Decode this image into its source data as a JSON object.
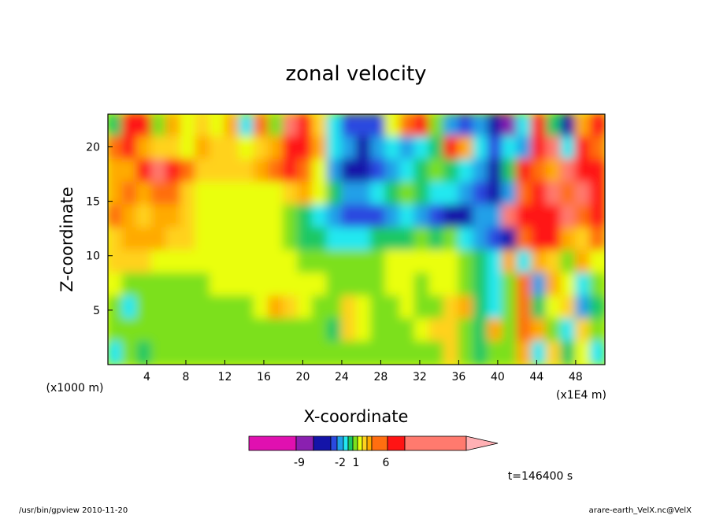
{
  "chart_data": {
    "type": "heatmap",
    "title": "zonal velocity",
    "xlabel": "X-coordinate",
    "ylabel": "Z-coordinate",
    "x_unit_left": "(x1000 m)",
    "x_unit_right": "(x1E4 m)",
    "x_ticks": [
      4,
      8,
      12,
      16,
      20,
      24,
      28,
      32,
      36,
      40,
      44,
      48
    ],
    "y_ticks": [
      5,
      10,
      15,
      20
    ],
    "xlim": [
      0,
      51
    ],
    "ylim": [
      0,
      23
    ],
    "colorbar": {
      "levels": [
        -15,
        -9,
        -7,
        -5,
        -4,
        -3,
        -2,
        -1,
        0,
        1,
        2,
        3,
        4,
        6,
        8,
        15
      ],
      "tick_labels": [
        "-9",
        "-2",
        "1",
        "6"
      ],
      "colors": [
        "#e010b0",
        "#8a20b0",
        "#1414a8",
        "#2a4ae0",
        "#21a0e8",
        "#22e8f0",
        "#1cc864",
        "#7ce01c",
        "#eaff10",
        "#ffd21e",
        "#ffaa00",
        "#ff6e10",
        "#ff1414",
        "#ff7a6e",
        "#ffb0b4"
      ]
    },
    "values": [
      [
        -2,
        5,
        4,
        -1,
        2,
        0,
        1,
        0,
        2,
        -3,
        3,
        -1,
        6,
        5,
        1,
        -3,
        -5,
        -5,
        -5,
        0,
        3,
        4,
        -1,
        -4,
        -5,
        -4,
        -6,
        -8,
        -3,
        5,
        -2,
        -7,
        2,
        4
      ],
      [
        3,
        4,
        2,
        1,
        1,
        0,
        2,
        1,
        1,
        0,
        1,
        2,
        5,
        4,
        2,
        -3,
        -4,
        -6,
        -4,
        -3,
        -4,
        -3,
        -2,
        5,
        2,
        -3,
        -5,
        -3,
        -4,
        4,
        7,
        -3,
        5,
        3
      ],
      [
        2,
        2,
        5,
        6,
        4,
        3,
        1,
        1,
        1,
        1,
        2,
        3,
        4,
        3,
        0,
        -4,
        -6,
        -6,
        -5,
        -4,
        -3,
        -2,
        -1,
        -2,
        -3,
        -4,
        -6,
        -2,
        5,
        3,
        2,
        6,
        4,
        5
      ],
      [
        2,
        3,
        2,
        3,
        3,
        1,
        0,
        0,
        0,
        0,
        0,
        0,
        1,
        2,
        0,
        -2,
        -4,
        -4,
        -3,
        -2,
        -1,
        -2,
        -3,
        -3,
        -4,
        -5,
        -6,
        -4,
        3,
        4,
        6,
        3,
        6,
        5
      ],
      [
        3,
        2,
        1,
        2,
        2,
        1,
        0,
        0,
        0,
        0,
        0,
        0,
        -1,
        -2,
        -3,
        -4,
        -5,
        -5,
        -5,
        -4,
        -3,
        -4,
        -5,
        -7,
        -6,
        -4,
        -4,
        7,
        5,
        4,
        5,
        6,
        3,
        4
      ],
      [
        1,
        2,
        2,
        2,
        1,
        1,
        0,
        0,
        0,
        0,
        0,
        0,
        -1,
        -2,
        -2,
        -3,
        -3,
        -3,
        -2,
        -2,
        -2,
        -1,
        -2,
        -1,
        -3,
        -4,
        -5,
        -7,
        3,
        4,
        4,
        2,
        1,
        3
      ],
      [
        1,
        1,
        1,
        0,
        0,
        0,
        0,
        0,
        0,
        0,
        0,
        0,
        0,
        -1,
        -1,
        -1,
        -1,
        -1,
        -1,
        0,
        0,
        0,
        0,
        0,
        -1,
        -2,
        -3,
        2,
        -3,
        2,
        1,
        -1,
        2,
        0
      ],
      [
        0,
        -1,
        -1,
        -1,
        -1,
        -1,
        -1,
        0,
        0,
        0,
        0,
        0,
        0,
        0,
        0,
        -1,
        -1,
        -1,
        -1,
        0,
        0,
        -1,
        0,
        0,
        -1,
        -2,
        -3,
        -1,
        3,
        -4,
        2,
        0,
        -3,
        -1
      ],
      [
        -1,
        -3,
        -1,
        -1,
        -1,
        -1,
        -1,
        -1,
        -1,
        -1,
        0,
        2,
        1,
        0,
        -1,
        -1,
        1,
        0,
        -1,
        -1,
        0,
        -1,
        -1,
        1,
        2,
        -2,
        -3,
        -1,
        3,
        -2,
        0,
        1,
        -4,
        -2
      ],
      [
        -1,
        -1,
        -1,
        -1,
        -1,
        -1,
        -1,
        -1,
        -1,
        -1,
        -1,
        -1,
        -1,
        -1,
        -1,
        -2,
        1,
        0,
        -1,
        -1,
        -1,
        0,
        1,
        1,
        -1,
        -2,
        2,
        -1,
        3,
        2,
        -1,
        -3,
        1,
        -1
      ],
      [
        -3,
        -1,
        -2,
        -1,
        -1,
        -1,
        -1,
        -1,
        -1,
        -1,
        -1,
        -1,
        -1,
        -1,
        -1,
        -1,
        -1,
        -1,
        -1,
        -1,
        -1,
        -1,
        -1,
        1,
        -1,
        -2,
        -1,
        -1,
        2,
        -3,
        1,
        -2,
        0,
        -3
      ]
    ],
    "data_grid": "values are rows from top (z=23) to bottom (z=0), columns from x=0 to x=51"
  },
  "annotations": {
    "time_label": "t=146400 s",
    "footer_left": "/usr/bin/gpview   2010-11-20",
    "footer_right": "arare-earth_VelX.nc@VelX"
  }
}
